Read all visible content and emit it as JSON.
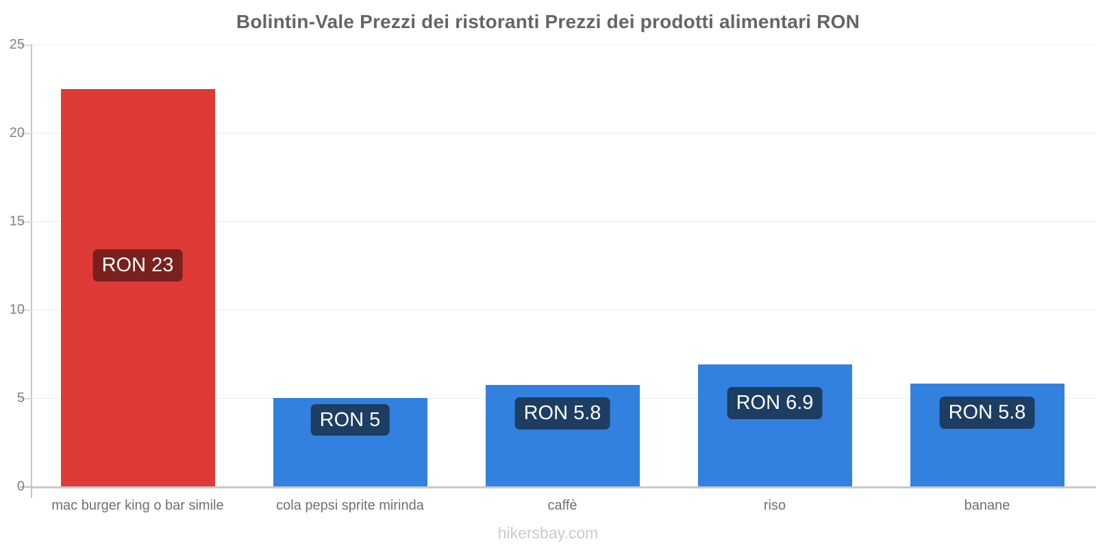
{
  "header": {
    "title": "Bolintin-Vale Prezzi dei ristoranti Prezzi dei prodotti alimentari RON"
  },
  "footer": {
    "text": "hikersbay.com"
  },
  "colors": {
    "restaurant_bar": "#de3a37",
    "restaurant_badge": "#7a201e",
    "grocery_bar": "#3381de",
    "grocery_badge": "#1d3e62"
  },
  "chart_data": {
    "type": "bar",
    "title": "Bolintin-Vale Prezzi dei ristoranti Prezzi dei prodotti alimentari RON",
    "xlabel": "",
    "ylabel": "",
    "currency": "RON",
    "ylim": [
      0,
      25
    ],
    "ytick_step": 5,
    "ytick_labels": [
      "0",
      "5",
      "10",
      "15",
      "20",
      "25"
    ],
    "grid": "horizontal-faint",
    "legend": "none",
    "categories": [
      "mac burger king o bar simile",
      "cola pepsi sprite mirinda",
      "caffè",
      "riso",
      "banane"
    ],
    "values": [
      23,
      5,
      5.8,
      6.9,
      5.8
    ],
    "bar_labels": [
      "RON 23",
      "RON 5",
      "RON 5.8",
      "RON 6.9",
      "RON 5.8"
    ],
    "plotted_values": [
      22.5,
      5.0,
      5.75,
      6.9,
      5.8
    ],
    "bar_colors": [
      "#de3a37",
      "#3381de",
      "#3381de",
      "#3381de",
      "#3381de"
    ],
    "badge_colors": [
      "#7a201e",
      "#1d3e62",
      "#1d3e62",
      "#1d3e62",
      "#1d3e62"
    ]
  }
}
